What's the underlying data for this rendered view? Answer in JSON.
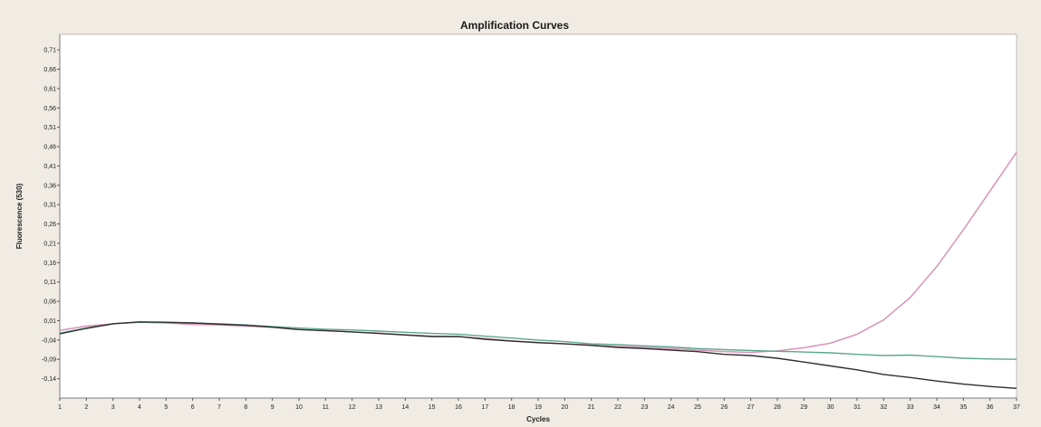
{
  "chart_data": {
    "type": "line",
    "title": "Amplification Curves",
    "xlabel": "Cycles",
    "ylabel": "Fluorescence (530)",
    "x": [
      1,
      2,
      3,
      4,
      5,
      6,
      7,
      8,
      9,
      10,
      11,
      12,
      13,
      14,
      15,
      16,
      17,
      18,
      19,
      20,
      21,
      22,
      23,
      24,
      25,
      26,
      27,
      28,
      29,
      30,
      31,
      32,
      33,
      34,
      35,
      36,
      37
    ],
    "xlim": [
      1,
      37
    ],
    "ylim": [
      -0.19,
      0.75
    ],
    "yticks": [
      "0,71",
      "0,66",
      "0,61",
      "0,56",
      "0,51",
      "0,46",
      "0,41",
      "0,36",
      "0,31",
      "0,26",
      "0,21",
      "0,16",
      "0,11",
      "0,06",
      "0,01",
      "-0,04",
      "-0,09",
      "-0,14"
    ],
    "ytick_values": [
      0.71,
      0.66,
      0.61,
      0.56,
      0.51,
      0.46,
      0.41,
      0.36,
      0.31,
      0.26,
      0.21,
      0.16,
      0.11,
      0.06,
      0.01,
      -0.04,
      -0.09,
      -0.14
    ],
    "xticks": [
      "1",
      "2",
      "3",
      "4",
      "5",
      "6",
      "7",
      "8",
      "9",
      "10",
      "11",
      "12",
      "13",
      "14",
      "15",
      "16",
      "17",
      "18",
      "19",
      "20",
      "21",
      "22",
      "23",
      "24",
      "25",
      "26",
      "27",
      "28",
      "29",
      "30",
      "31",
      "32",
      "33",
      "34",
      "35",
      "36",
      "37"
    ],
    "grid": false,
    "series": [
      {
        "color": "#d98cb4",
        "values": [
          -0.015,
          -0.004,
          0.002,
          0.006,
          0.004,
          0.0,
          -0.001,
          -0.004,
          -0.007,
          -0.013,
          -0.015,
          -0.019,
          -0.022,
          -0.026,
          -0.03,
          -0.031,
          -0.036,
          -0.042,
          -0.046,
          -0.05,
          -0.053,
          -0.057,
          -0.059,
          -0.062,
          -0.066,
          -0.07,
          -0.072,
          -0.068,
          -0.06,
          -0.048,
          -0.025,
          0.012,
          0.07,
          0.15,
          0.245,
          0.345,
          0.445
        ]
      },
      {
        "color": "#5aa88e",
        "values": [
          -0.022,
          -0.009,
          0.002,
          0.006,
          0.005,
          0.004,
          0.002,
          -0.001,
          -0.005,
          -0.009,
          -0.012,
          -0.014,
          -0.017,
          -0.02,
          -0.023,
          -0.025,
          -0.03,
          -0.035,
          -0.04,
          -0.044,
          -0.05,
          -0.052,
          -0.055,
          -0.058,
          -0.062,
          -0.065,
          -0.067,
          -0.069,
          -0.071,
          -0.073,
          -0.077,
          -0.08,
          -0.079,
          -0.083,
          -0.087,
          -0.089,
          -0.09
        ]
      },
      {
        "color": "#2e2e2e",
        "values": [
          -0.024,
          -0.01,
          0.002,
          0.007,
          0.006,
          0.004,
          0.001,
          -0.002,
          -0.007,
          -0.013,
          -0.016,
          -0.019,
          -0.023,
          -0.027,
          -0.031,
          -0.031,
          -0.038,
          -0.043,
          -0.047,
          -0.05,
          -0.054,
          -0.059,
          -0.062,
          -0.066,
          -0.07,
          -0.077,
          -0.08,
          -0.087,
          -0.097,
          -0.107,
          -0.117,
          -0.129,
          -0.137,
          -0.146,
          -0.154,
          -0.16,
          -0.165
        ]
      }
    ]
  }
}
